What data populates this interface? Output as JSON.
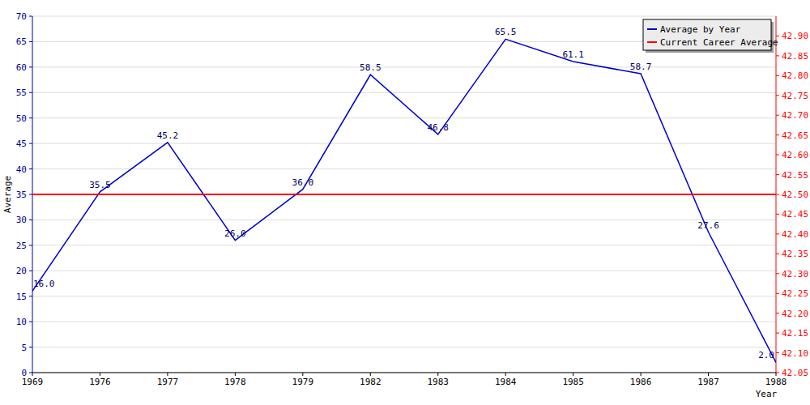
{
  "chart_data": {
    "type": "line",
    "xlabel": "Year",
    "ylabel": "Average",
    "categories": [
      "1969",
      "1976",
      "1977",
      "1978",
      "1979",
      "1982",
      "1983",
      "1984",
      "1985",
      "1986",
      "1987",
      "1988"
    ],
    "series": [
      {
        "name": "Average by Year",
        "color": "#0000cc",
        "line_style": "solid",
        "values": [
          16,
          35.5,
          45.2,
          26,
          36,
          58.5,
          46.8,
          65.5,
          61.1,
          58.7,
          27.6,
          2
        ],
        "value_labels": [
          "16.0",
          "35.5",
          "45.2",
          "26.0",
          "36.0",
          "58.5",
          "46.8",
          "65.5",
          "61.1",
          "58.7",
          "27.6",
          "2.0"
        ]
      },
      {
        "name": "Current Career Average",
        "color": "#ff0000",
        "line_style": "solid",
        "axis": "y2",
        "values": [
          42.5,
          42.5,
          42.5,
          42.5,
          42.5,
          42.5,
          42.5,
          42.5,
          42.5,
          42.5,
          42.5,
          42.5
        ]
      }
    ],
    "ylim": [
      0,
      70
    ],
    "yticks": [
      0,
      5,
      10,
      15,
      20,
      25,
      30,
      35,
      40,
      45,
      50,
      55,
      60,
      65,
      70
    ],
    "y2lim": [
      42.05,
      42.95
    ],
    "y2ticks": [
      42.05,
      {
        "value": 42.1,
        "label": "42.10"
      },
      42.15,
      {
        "value": 42.2,
        "label": "42.20"
      },
      42.25,
      {
        "value": 42.3,
        "label": "42.30"
      },
      42.35,
      {
        "value": 42.4,
        "label": "42.40"
      },
      42.45,
      {
        "value": 42.5,
        "label": "42.50"
      },
      42.55,
      {
        "value": 42.6,
        "label": "42.60"
      },
      42.65,
      {
        "value": 42.7,
        "label": "42.70"
      },
      42.75,
      {
        "value": 42.8,
        "label": "42.80"
      },
      42.85,
      {
        "value": 42.9,
        "label": "42.90"
      }
    ],
    "grid": true,
    "legend": "top-right",
    "data_labels": true
  }
}
